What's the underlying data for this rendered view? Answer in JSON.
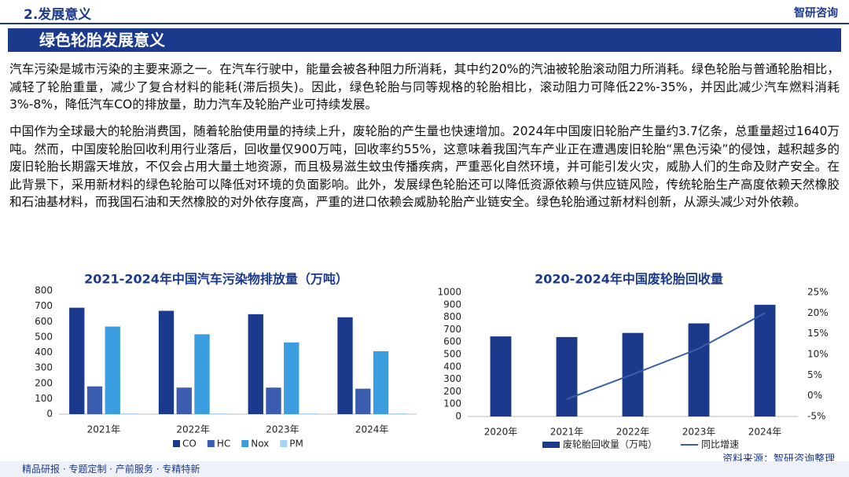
{
  "header": {
    "section": "2.发展意义",
    "logo": "智研咨询"
  },
  "title": "绿色轮胎发展意义",
  "paragraphs": [
    "汽车污染是城市污染的主要来源之一。在汽车行驶中，能量会被各种阻力所消耗，其中约20%的汽油被轮胎滚动阻力所消耗。绿色轮胎与普通轮胎相比，减轻了轮胎重量，减少了复合材料的能耗(滞后损失)。因此，绿色轮胎与同等规格的轮胎相比，滚动阻力可降低22%-35%，并因此减少汽车燃料消耗3%-8%，降低汽车CO的排放量，助力汽车及轮胎产业可持续发展。",
    "中国作为全球最大的轮胎消费国，随着轮胎使用量的持续上升，废轮胎的产生量也快速增加。2024年中国废旧轮胎产生量约3.7亿条，总重量超过1640万吨。然而，中国废轮胎回收利用行业落后，回收量仅900万吨，回收率约55%，这意味着我国汽车产业正在遭遇废旧轮胎“黑色污染”的侵蚀，越积越多的废旧轮胎长期露天堆放，不仅会占用大量土地资源，而且极易滋生蚊虫传播疾病，严重恶化自然环境，并可能引发火灾，威胁人们的生命及财产安全。在此背景下，采用新材料的绿色轮胎可以降低对环境的负面影响。此外，发展绿色轮胎还可以降低资源依赖与供应链风险，传统轮胎生产高度依赖天然橡胶和石油基材料，而我国石油和天然橡胶的对外依存度高，严重的进口依赖会威胁轮胎产业链安全。绿色轮胎通过新材料创新，从源头减少对外依赖。"
  ],
  "chart_data": [
    {
      "type": "bar",
      "title": "2021-2024年中国汽车污染物排放量（万吨）",
      "categories": [
        "2021年",
        "2022年",
        "2023年",
        "2024年"
      ],
      "series": [
        {
          "name": "CO",
          "color": "#1b3a8c",
          "values": [
            690,
            670,
            648,
            628
          ]
        },
        {
          "name": "HC",
          "color": "#3a5db0",
          "values": [
            180,
            172,
            172,
            165
          ]
        },
        {
          "name": "Nox",
          "color": "#3a9ee0",
          "values": [
            568,
            518,
            465,
            408
          ]
        },
        {
          "name": "PM",
          "color": "#a6d4f2",
          "values": [
            5,
            5,
            5,
            5
          ]
        }
      ],
      "ylim": [
        0,
        800
      ],
      "yticks": [
        0,
        100,
        200,
        300,
        400,
        500,
        600,
        700,
        800
      ]
    },
    {
      "type": "combo",
      "title": "2020-2024年中国废轮胎回收量",
      "categories": [
        "2020年",
        "2021年",
        "2022年",
        "2023年",
        "2024年"
      ],
      "series": [
        {
          "name": "废轮胎回收量（万吨）",
          "color": "#1b3a8c",
          "values": [
            645,
            640,
            673,
            750,
            900
          ]
        },
        {
          "name": "同比增速",
          "color": "#3a5fa8",
          "axis": "y2",
          "values": [
            null,
            -0.8,
            5.2,
            11.4,
            20
          ]
        }
      ],
      "ylim": [
        0,
        1000
      ],
      "yticks": [
        0,
        100,
        200,
        300,
        400,
        500,
        600,
        700,
        800,
        900,
        1000
      ],
      "y2lim": [
        -5,
        25
      ],
      "y2ticks": [
        {
          "value": -5,
          "label": "-5%"
        },
        {
          "value": 0,
          "label": "0%"
        },
        {
          "value": 5,
          "label": "5%"
        },
        {
          "value": 10,
          "label": "10%"
        },
        {
          "value": 15,
          "label": "15%"
        },
        {
          "value": 20,
          "label": "20%"
        },
        {
          "value": 25,
          "label": "25%"
        }
      ]
    }
  ],
  "source": "资料来源：智研咨询整理",
  "footer": "精品研报 · 专题定制 · 产前服务 · 专精特新"
}
